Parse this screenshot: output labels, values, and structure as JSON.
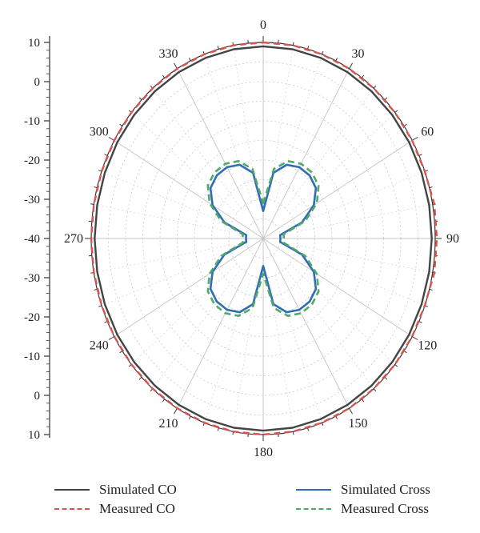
{
  "chart_data": {
    "type": "polar-line",
    "angle_ticks": [
      "0",
      "30",
      "60",
      "90",
      "120",
      "150",
      "180",
      "210",
      "240",
      "270",
      "300",
      "330"
    ],
    "radial_tick_labels": [
      "10",
      "0",
      "-10",
      "-20",
      "-30",
      "-40",
      "-30",
      "-20",
      "-10",
      "0",
      "10"
    ],
    "rlim": [
      -40,
      10
    ],
    "grid": true,
    "legend_position": "bottom",
    "angles_deg": [
      0,
      10,
      20,
      30,
      40,
      50,
      60,
      70,
      80,
      90,
      100,
      110,
      120,
      130,
      140,
      150,
      160,
      170,
      180,
      190,
      200,
      210,
      220,
      230,
      240,
      250,
      260,
      270,
      280,
      290,
      300,
      310,
      320,
      330,
      340,
      350
    ],
    "series": [
      {
        "name": "Simulated CO",
        "color": "#444444",
        "dash": "solid",
        "values": [
          9,
          9,
          9,
          9,
          9,
          9,
          9,
          9,
          9,
          9,
          9,
          9,
          9,
          9,
          9,
          9,
          9,
          9,
          9,
          9,
          9,
          9,
          9,
          9,
          9,
          9,
          9,
          9,
          9,
          9,
          9,
          9,
          9,
          9,
          9,
          9
        ]
      },
      {
        "name": "Measured CO",
        "color": "#d9534f",
        "dash": "dashed",
        "values": [
          10,
          10,
          10,
          10,
          10,
          10,
          10,
          10,
          10.5,
          10.5,
          10.5,
          10,
          10,
          10,
          10,
          10,
          10,
          10,
          10,
          10,
          10,
          10,
          10,
          10,
          10,
          10,
          10,
          10,
          10,
          10,
          10,
          10,
          10,
          10,
          10,
          10
        ]
      },
      {
        "name": "Simulated Cross",
        "color": "#2f6db5",
        "dash": "solid",
        "values": [
          -33,
          -23,
          -20,
          -19,
          -19,
          -20,
          -23,
          -28,
          -35,
          -35,
          -35,
          -28,
          -23,
          -20,
          -19,
          -19,
          -20,
          -23,
          -33,
          -23,
          -20,
          -19,
          -19,
          -20,
          -23,
          -28,
          -35,
          -35,
          -35,
          -28,
          -23,
          -20,
          -19,
          -19,
          -20,
          -23
        ]
      },
      {
        "name": "Measured Cross",
        "color": "#4fa96a",
        "dash": "dashed",
        "values": [
          -31,
          -22,
          -19,
          -18,
          -18,
          -19,
          -22,
          -27,
          -34,
          -34,
          -34,
          -27,
          -22,
          -19,
          -18,
          -18,
          -19,
          -22,
          -31,
          -22,
          -19,
          -18,
          -18,
          -19,
          -22,
          -27,
          -34,
          -34,
          -34,
          -27,
          -22,
          -19,
          -18,
          -18,
          -19,
          -22
        ]
      }
    ]
  }
}
